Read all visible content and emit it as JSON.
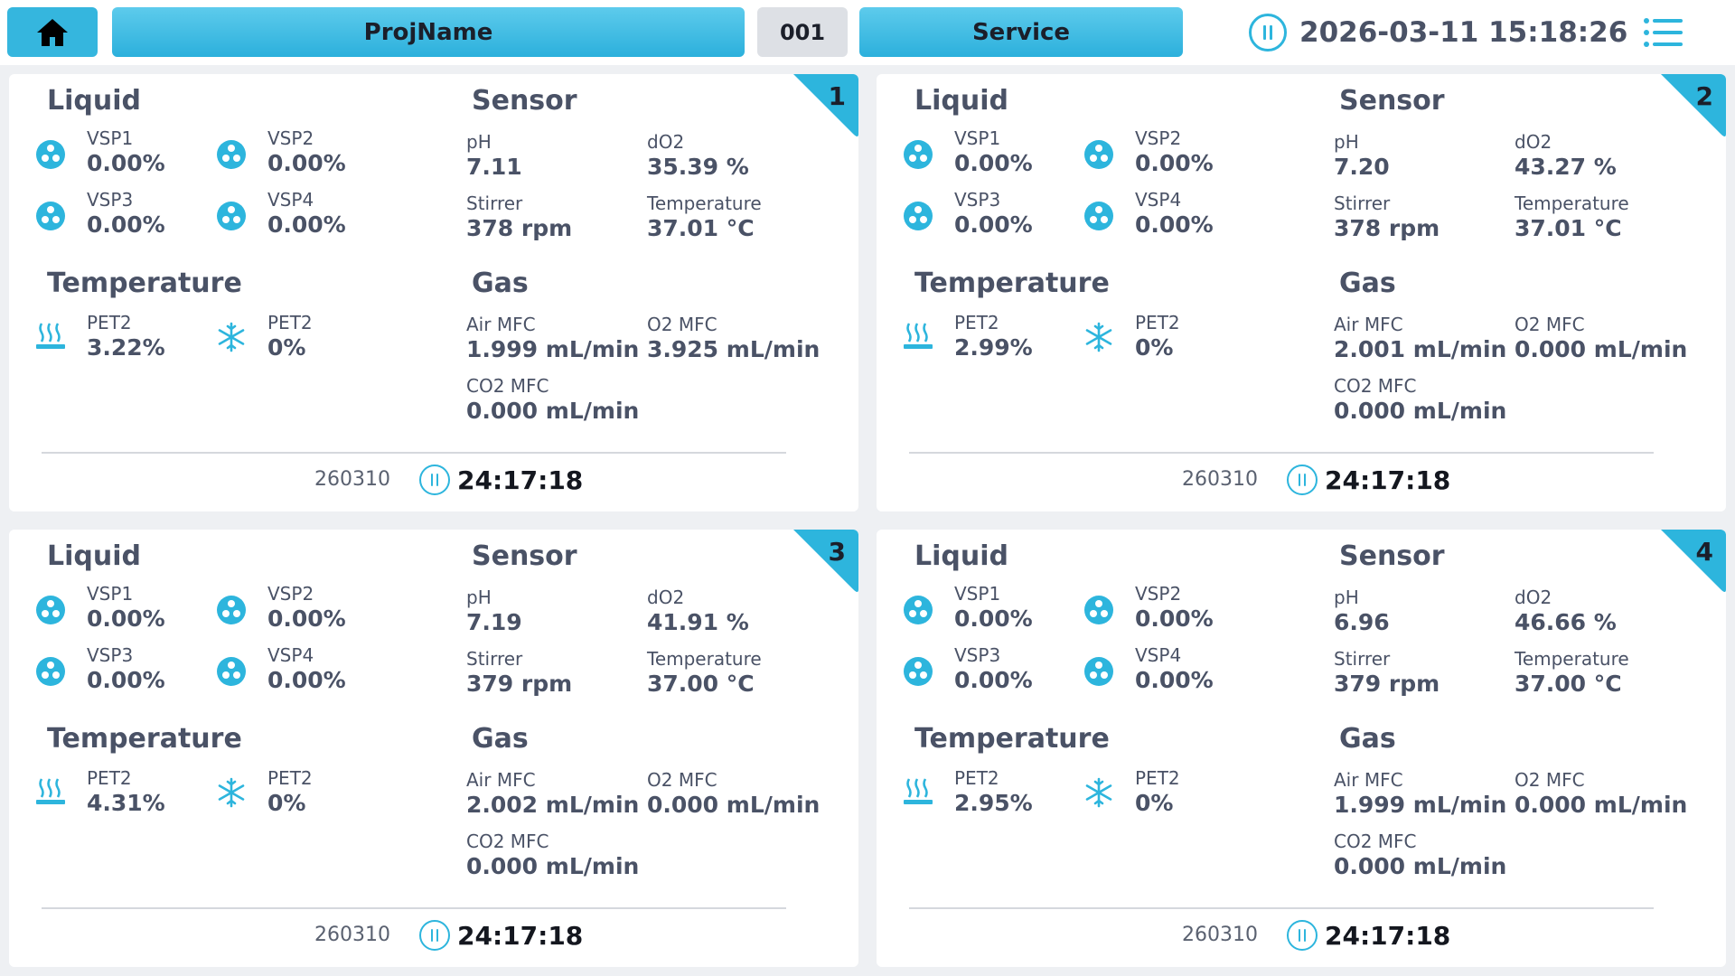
{
  "header": {
    "project_name": "ProjName",
    "id": "001",
    "service_label": "Service",
    "datetime": "2026-03-11 15:18:26"
  },
  "colors": {
    "accent": "#2db5dd",
    "text": "#4a5266"
  },
  "icons": {
    "home": "home-icon",
    "menu": "menu-list-icon",
    "pause": "pause-circle-icon",
    "pump": "pump-icon",
    "heater": "heater-icon",
    "cooler": "snowflake-icon"
  },
  "cards": [
    {
      "number": "1",
      "liquid": {
        "title": "Liquid",
        "vsp1": {
          "label": "VSP1",
          "value": "0.00%"
        },
        "vsp2": {
          "label": "VSP2",
          "value": "0.00%"
        },
        "vsp3": {
          "label": "VSP3",
          "value": "0.00%"
        },
        "vsp4": {
          "label": "VSP4",
          "value": "0.00%"
        }
      },
      "temperature": {
        "title": "Temperature",
        "heat": {
          "label": "PET2",
          "value": "3.22%"
        },
        "cool": {
          "label": "PET2",
          "value": "0%"
        }
      },
      "sensor": {
        "title": "Sensor",
        "ph": {
          "label": "pH",
          "value": "7.11"
        },
        "do2": {
          "label": "dO2",
          "value": "35.39 %"
        },
        "stirrer": {
          "label": "Stirrer",
          "value": "378 rpm"
        },
        "temp": {
          "label": "Temperature",
          "value": "37.01 °C"
        }
      },
      "gas": {
        "title": "Gas",
        "air": {
          "label": "Air MFC",
          "value": "1.999 mL/min"
        },
        "o2": {
          "label": "O2 MFC",
          "value": "3.925 mL/min"
        },
        "co2": {
          "label": "CO2 MFC",
          "value": "0.000 mL/min"
        }
      },
      "footer": {
        "code": "260310",
        "timer": "24:17:18"
      }
    },
    {
      "number": "2",
      "liquid": {
        "title": "Liquid",
        "vsp1": {
          "label": "VSP1",
          "value": "0.00%"
        },
        "vsp2": {
          "label": "VSP2",
          "value": "0.00%"
        },
        "vsp3": {
          "label": "VSP3",
          "value": "0.00%"
        },
        "vsp4": {
          "label": "VSP4",
          "value": "0.00%"
        }
      },
      "temperature": {
        "title": "Temperature",
        "heat": {
          "label": "PET2",
          "value": "2.99%"
        },
        "cool": {
          "label": "PET2",
          "value": "0%"
        }
      },
      "sensor": {
        "title": "Sensor",
        "ph": {
          "label": "pH",
          "value": "7.20"
        },
        "do2": {
          "label": "dO2",
          "value": "43.27 %"
        },
        "stirrer": {
          "label": "Stirrer",
          "value": "378 rpm"
        },
        "temp": {
          "label": "Temperature",
          "value": "37.01 °C"
        }
      },
      "gas": {
        "title": "Gas",
        "air": {
          "label": "Air MFC",
          "value": "2.001 mL/min"
        },
        "o2": {
          "label": "O2 MFC",
          "value": "0.000 mL/min"
        },
        "co2": {
          "label": "CO2 MFC",
          "value": "0.000 mL/min"
        }
      },
      "footer": {
        "code": "260310",
        "timer": "24:17:18"
      }
    },
    {
      "number": "3",
      "liquid": {
        "title": "Liquid",
        "vsp1": {
          "label": "VSP1",
          "value": "0.00%"
        },
        "vsp2": {
          "label": "VSP2",
          "value": "0.00%"
        },
        "vsp3": {
          "label": "VSP3",
          "value": "0.00%"
        },
        "vsp4": {
          "label": "VSP4",
          "value": "0.00%"
        }
      },
      "temperature": {
        "title": "Temperature",
        "heat": {
          "label": "PET2",
          "value": "4.31%"
        },
        "cool": {
          "label": "PET2",
          "value": "0%"
        }
      },
      "sensor": {
        "title": "Sensor",
        "ph": {
          "label": "pH",
          "value": "7.19"
        },
        "do2": {
          "label": "dO2",
          "value": "41.91 %"
        },
        "stirrer": {
          "label": "Stirrer",
          "value": "379 rpm"
        },
        "temp": {
          "label": "Temperature",
          "value": "37.00 °C"
        }
      },
      "gas": {
        "title": "Gas",
        "air": {
          "label": "Air MFC",
          "value": "2.002 mL/min"
        },
        "o2": {
          "label": "O2 MFC",
          "value": "0.000 mL/min"
        },
        "co2": {
          "label": "CO2 MFC",
          "value": "0.000 mL/min"
        }
      },
      "footer": {
        "code": "260310",
        "timer": "24:17:18"
      }
    },
    {
      "number": "4",
      "liquid": {
        "title": "Liquid",
        "vsp1": {
          "label": "VSP1",
          "value": "0.00%"
        },
        "vsp2": {
          "label": "VSP2",
          "value": "0.00%"
        },
        "vsp3": {
          "label": "VSP3",
          "value": "0.00%"
        },
        "vsp4": {
          "label": "VSP4",
          "value": "0.00%"
        }
      },
      "temperature": {
        "title": "Temperature",
        "heat": {
          "label": "PET2",
          "value": "2.95%"
        },
        "cool": {
          "label": "PET2",
          "value": "0%"
        }
      },
      "sensor": {
        "title": "Sensor",
        "ph": {
          "label": "pH",
          "value": "6.96"
        },
        "do2": {
          "label": "dO2",
          "value": "46.66 %"
        },
        "stirrer": {
          "label": "Stirrer",
          "value": "379 rpm"
        },
        "temp": {
          "label": "Temperature",
          "value": "37.00 °C"
        }
      },
      "gas": {
        "title": "Gas",
        "air": {
          "label": "Air MFC",
          "value": "1.999 mL/min"
        },
        "o2": {
          "label": "O2 MFC",
          "value": "0.000 mL/min"
        },
        "co2": {
          "label": "CO2 MFC",
          "value": "0.000 mL/min"
        }
      },
      "footer": {
        "code": "260310",
        "timer": "24:17:18"
      }
    }
  ]
}
